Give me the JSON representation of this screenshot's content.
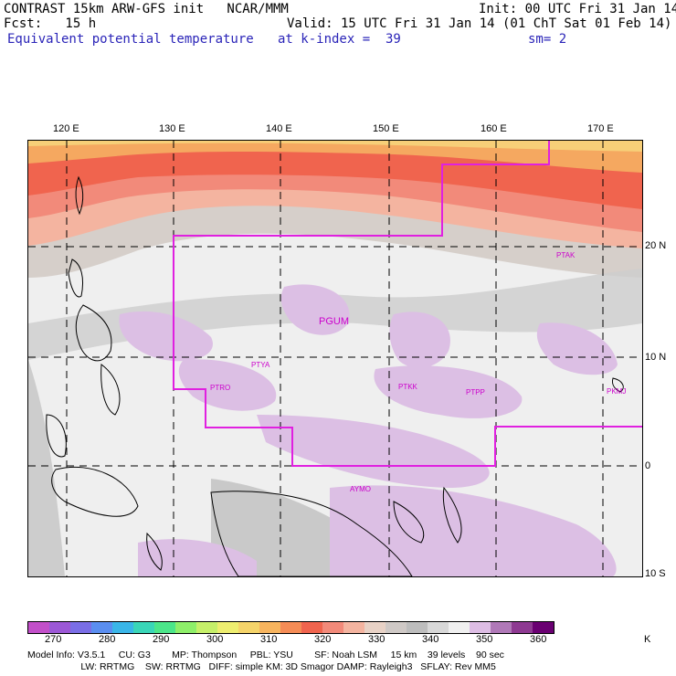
{
  "header": {
    "line1_left": "CONTRAST 15km ARW-GFS init   NCAR/MMM",
    "line1_right": "Init: 00 UTC Fri 31 Jan 14",
    "line2_left": "Fcst:   15 h",
    "line2_right": "Valid: 15 UTC Fri 31 Jan 14 (01 ChT Sat 01 Feb 14)",
    "line3_field": "Equivalent potential temperature",
    "line3_level": "at k-index =  39",
    "line3_smooth": "sm= 2"
  },
  "axes": {
    "lon_labels": [
      "120 E",
      "130 E",
      "140 E",
      "150 E",
      "160 E",
      "170 E"
    ],
    "lat_labels": [
      "20 N",
      "10 N",
      "0",
      "10 S"
    ]
  },
  "stations": [
    "PTAK",
    "PGUM",
    "PTYA",
    "PTRO",
    "PTKK",
    "PTPP",
    "PKMJ",
    "AYMO"
  ],
  "colorbar": {
    "colors": [
      "#c24fc9",
      "#9c58d6",
      "#7a6ee6",
      "#5a8ef0",
      "#3ab6e8",
      "#3ad6b8",
      "#4ce68a",
      "#8eef6a",
      "#c6f06a",
      "#eeee70",
      "#f5d46a",
      "#f7b45e",
      "#f58c56",
      "#f0644e",
      "#f28a7a",
      "#f4b4a0",
      "#e8d2c6",
      "#cfc9c6",
      "#bdbdbd",
      "#d8d8d8",
      "#f0f0f0",
      "#ddbde4",
      "#b079b8",
      "#8e3a92",
      "#6a0072"
    ],
    "labels": [
      "270",
      "280",
      "290",
      "300",
      "310",
      "320",
      "330",
      "340",
      "350",
      "360",
      "K"
    ]
  },
  "footer": {
    "line1": "Model Info: V3.5.1     CU: G3        MP: Thompson     PBL: YSU        SF: Noah LSM     15 km    39 levels    90 sec",
    "line2": "                    LW: RRTMG    SW: RRTMG   DIFF: simple KM: 3D Smagor DAMP: Rayleigh3   SFLAY: Rev MM5"
  }
}
